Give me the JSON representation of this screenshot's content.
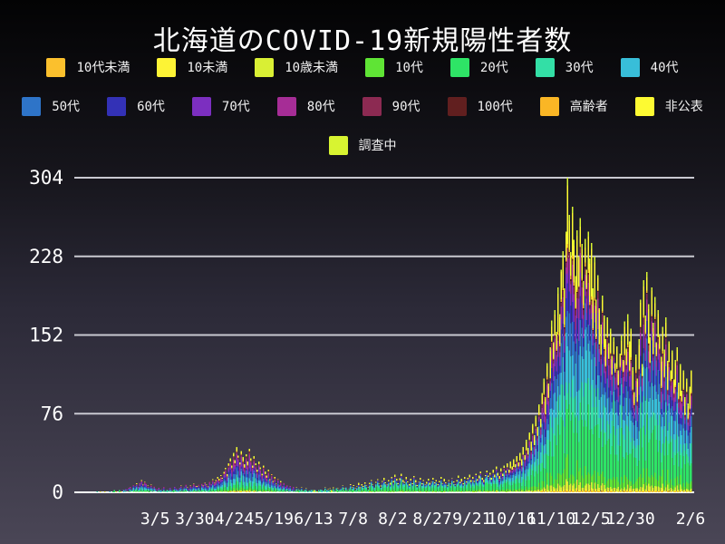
{
  "title": "北海道のCOVID-19新規陽性者数",
  "colors": {
    "background_top": "#030304",
    "background_bottom": "#4a4656",
    "grid": "#c9c9d1",
    "axis_zero_line": "#ffffff",
    "text": "#ffffff"
  },
  "chart_data": {
    "type": "bar",
    "stacked": true,
    "title": "北海道のCOVID-19新規陽性者数",
    "xlabel": "",
    "ylabel": "",
    "ylim": [
      0,
      304
    ],
    "y_ticks": [
      0,
      76,
      152,
      228,
      304
    ],
    "grid": true,
    "legend_position": "top",
    "x_ticks": [
      {
        "label": "3/5",
        "day": 51
      },
      {
        "label": "3/30",
        "day": 76
      },
      {
        "label": "4/24",
        "day": 101
      },
      {
        "label": "5/19",
        "day": 126
      },
      {
        "label": "6/13",
        "day": 151
      },
      {
        "label": "7/8",
        "day": 176
      },
      {
        "label": "8/2",
        "day": 201
      },
      {
        "label": "8/27",
        "day": 226
      },
      {
        "label": "9/21",
        "day": 251
      },
      {
        "label": "10/16",
        "day": 276
      },
      {
        "label": "11/10",
        "day": 301
      },
      {
        "label": "12/5",
        "day": 326
      },
      {
        "label": "12/30",
        "day": 351
      },
      {
        "label": "2/6",
        "day": 389
      }
    ],
    "series": [
      {
        "label": "10代未満",
        "color": "#fbc02d"
      },
      {
        "label": "10未満",
        "color": "#fdf335"
      },
      {
        "label": "10歳未満",
        "color": "#d9ef34"
      },
      {
        "label": "10代",
        "color": "#5fe435"
      },
      {
        "label": "20代",
        "color": "#2ee466"
      },
      {
        "label": "30代",
        "color": "#33dfa6"
      },
      {
        "label": "40代",
        "color": "#38bed9"
      },
      {
        "label": "50代",
        "color": "#2e74c8"
      },
      {
        "label": "60代",
        "color": "#3331b6"
      },
      {
        "label": "70代",
        "color": "#7c2fc0"
      },
      {
        "label": "80代",
        "color": "#a62d96"
      },
      {
        "label": "90代",
        "color": "#8c2a52"
      },
      {
        "label": "100代",
        "color": "#611f1f"
      },
      {
        "label": "高齢者",
        "color": "#fab625"
      },
      {
        "label": "非公表",
        "color": "#fdfa32"
      },
      {
        "label": "調査中",
        "color": "#d8f431"
      }
    ],
    "legend_rows": [
      [
        0,
        1,
        2,
        3,
        4,
        5,
        6
      ],
      [
        7,
        8,
        9,
        10,
        11,
        12,
        13,
        14
      ],
      [
        15
      ]
    ],
    "daily_totals": [
      0,
      0,
      0,
      0,
      0,
      0,
      0,
      0,
      0,
      0,
      0,
      0,
      0,
      0,
      1,
      0,
      1,
      0,
      0,
      1,
      0,
      0,
      1,
      0,
      1,
      2,
      1,
      0,
      2,
      1,
      3,
      2,
      4,
      3,
      5,
      6,
      4,
      8,
      7,
      9,
      6,
      10,
      12,
      8,
      11,
      9,
      7,
      6,
      8,
      5,
      6,
      4,
      3,
      5,
      2,
      4,
      6,
      3,
      2,
      4,
      5,
      3,
      2,
      6,
      4,
      3,
      5,
      7,
      4,
      6,
      8,
      5,
      4,
      7,
      6,
      9,
      7,
      6,
      8,
      5,
      9,
      7,
      10,
      8,
      6,
      11,
      9,
      13,
      10,
      12,
      15,
      13,
      17,
      14,
      20,
      24,
      18,
      28,
      33,
      26,
      38,
      31,
      44,
      36,
      29,
      40,
      34,
      27,
      37,
      30,
      42,
      33,
      26,
      35,
      28,
      22,
      30,
      24,
      18,
      26,
      20,
      16,
      22,
      13,
      18,
      11,
      15,
      9,
      13,
      8,
      11,
      7,
      10,
      6,
      8,
      5,
      7,
      4,
      6,
      3,
      5,
      4,
      2,
      5,
      3,
      2,
      4,
      1,
      3,
      2,
      4,
      2,
      3,
      1,
      2,
      4,
      2,
      3,
      5,
      2,
      3,
      4,
      2,
      5,
      3,
      6,
      4,
      3,
      5,
      7,
      4,
      6,
      3,
      5,
      8,
      5,
      7,
      4,
      6,
      9,
      5,
      8,
      6,
      10,
      7,
      5,
      9,
      12,
      8,
      6,
      10,
      13,
      9,
      7,
      11,
      14,
      10,
      8,
      12,
      9,
      15,
      11,
      17,
      13,
      9,
      14,
      18,
      12,
      10,
      15,
      11,
      8,
      13,
      9,
      16,
      12,
      7,
      11,
      14,
      9,
      12,
      8,
      10,
      13,
      9,
      11,
      14,
      10,
      12,
      8,
      11,
      15,
      9,
      13,
      10,
      7,
      12,
      9,
      14,
      11,
      8,
      12,
      16,
      10,
      13,
      9,
      15,
      11,
      14,
      17,
      12,
      15,
      11,
      18,
      13,
      16,
      20,
      14,
      12,
      17,
      21,
      16,
      19,
      14,
      22,
      17,
      25,
      19,
      16,
      23,
      18,
      26,
      21,
      28,
      22,
      30,
      25,
      32,
      27,
      35,
      29,
      38,
      32,
      44,
      36,
      51,
      43,
      58,
      49,
      66,
      55,
      74,
      63,
      85,
      71,
      96,
      110,
      92,
      125,
      105,
      140,
      166,
      145,
      176,
      155,
      198,
      172,
      215,
      233,
      197,
      252,
      304,
      268,
      232,
      276,
      244,
      209,
      253,
      228,
      265,
      240,
      204,
      245,
      215,
      252,
      226,
      241,
      197,
      228,
      186,
      210,
      178,
      162,
      190,
      171,
      148,
      169,
      144,
      158,
      132,
      150,
      125,
      141,
      118,
      134,
      152,
      128,
      165,
      139,
      172,
      146,
      158,
      121,
      97,
      133,
      110,
      148,
      186,
      124,
      205,
      171,
      213,
      182,
      150,
      198,
      164,
      189,
      145,
      176,
      152,
      131,
      160,
      138,
      169,
      127,
      146,
      118,
      137,
      109,
      128,
      140,
      106,
      124,
      98,
      118,
      92,
      110,
      86,
      102,
      118
    ],
    "composition_eras": [
      {
        "until_day": 140,
        "weights": {
          "10代未満": 0.015,
          "10未満": 0.01,
          "10歳未満": 0.02,
          "10代": 0.05,
          "20代": 0.11,
          "30代": 0.1,
          "40代": 0.12,
          "50代": 0.13,
          "60代": 0.1,
          "70代": 0.12,
          "80代": 0.1,
          "90代": 0.05,
          "100代": 0.01,
          "高齢者": 0.025,
          "非公表": 0.05,
          "調査中": 0.02
        }
      },
      {
        "until_day": 268,
        "weights": {
          "10代未満": 0.01,
          "10未満": 0.008,
          "10歳未満": 0.03,
          "10代": 0.08,
          "20代": 0.3,
          "30代": 0.14,
          "40代": 0.12,
          "50代": 0.08,
          "60代": 0.05,
          "70代": 0.04,
          "80代": 0.02,
          "90代": 0.01,
          "100代": 0.003,
          "高齢者": 0.007,
          "非公表": 0.09,
          "調査中": 0.03
        }
      },
      {
        "until_day": 390,
        "weights": {
          "10代未満": 0.006,
          "10未満": 0.006,
          "10歳未満": 0.022,
          "10代": 0.06,
          "20代": 0.21,
          "30代": 0.125,
          "40代": 0.125,
          "50代": 0.105,
          "60代": 0.07,
          "70代": 0.06,
          "80代": 0.05,
          "90代": 0.025,
          "100代": 0.006,
          "高齢者": 0.01,
          "非公表": 0.13,
          "調査中": 0.025
        }
      }
    ]
  }
}
